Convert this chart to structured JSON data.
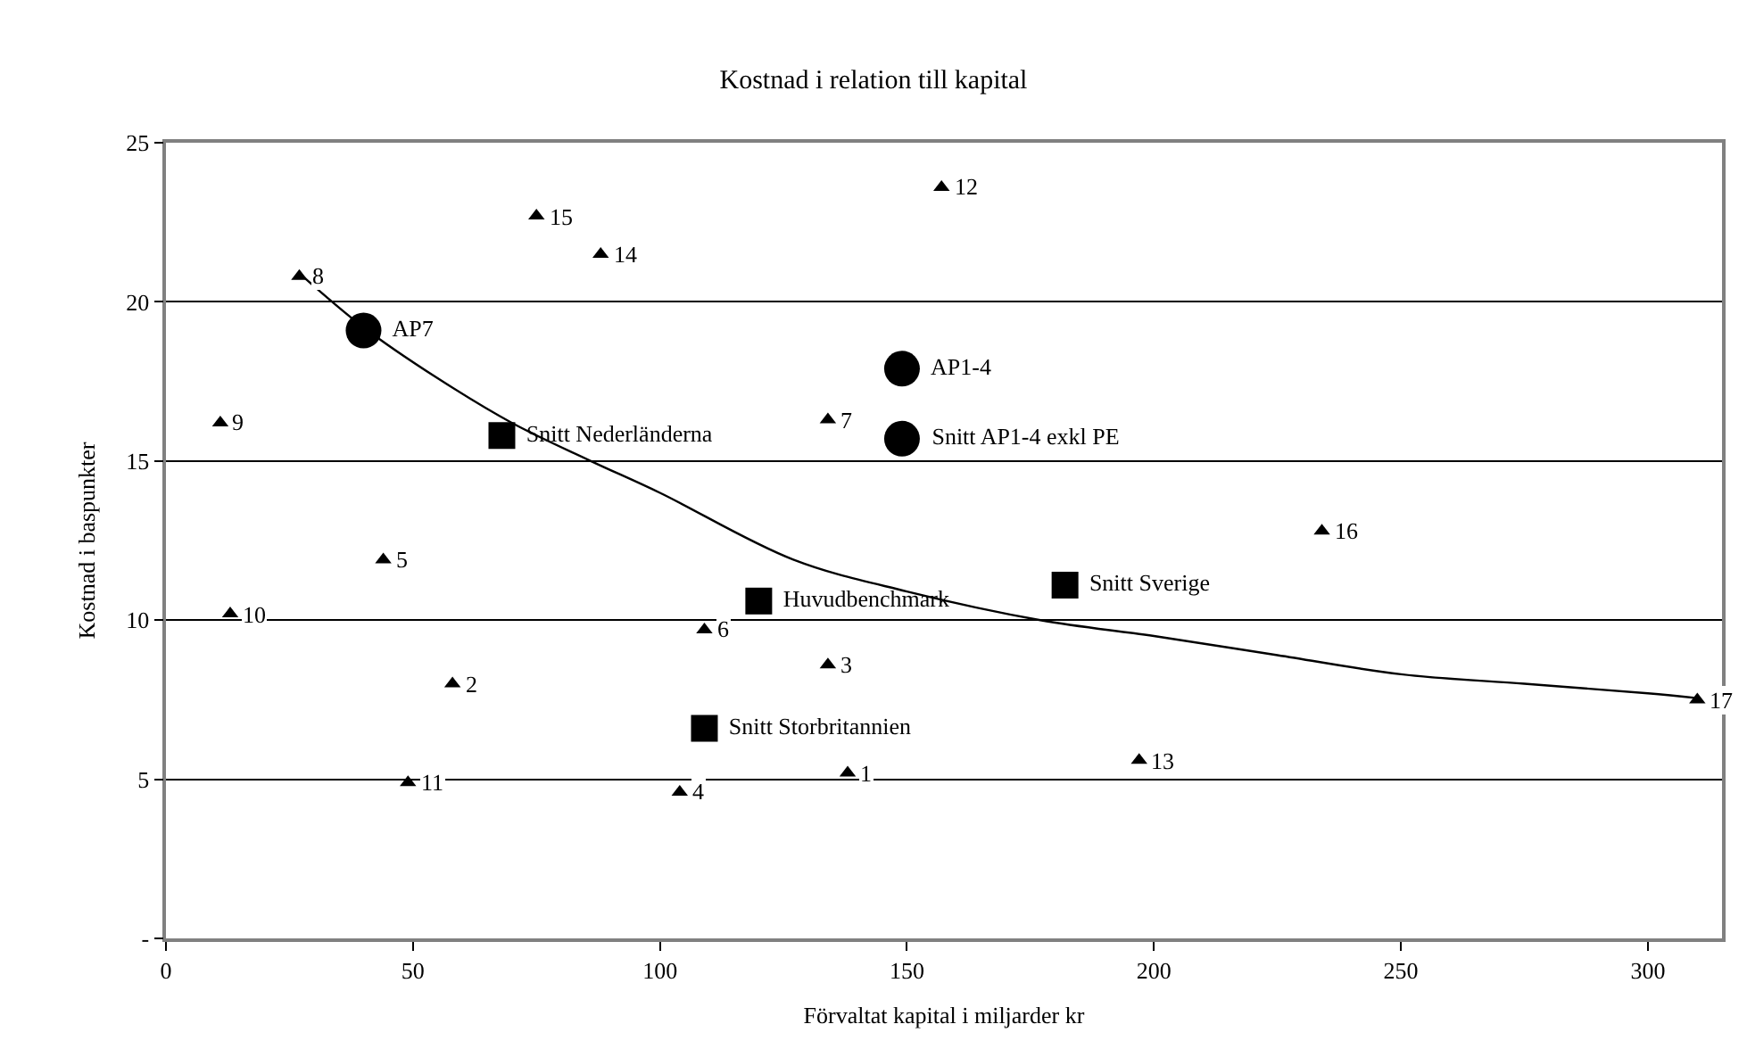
{
  "chart_data": {
    "type": "scatter",
    "title": "Kostnad i relation till kapital",
    "xlabel": "Förvaltat kapital i miljarder kr",
    "ylabel": "Kostnad i baspunkter",
    "xlim": [
      0,
      315
    ],
    "xticks": [
      0,
      50,
      100,
      150,
      200,
      250,
      300
    ],
    "ylim": [
      0,
      25
    ],
    "yticks": [
      {
        "value": 0,
        "label": "-"
      },
      5,
      10,
      15,
      20,
      25
    ],
    "grid": "y",
    "series": [
      {
        "marker": "triangle",
        "color": "#000000",
        "x": [
          138,
          58,
          134,
          104,
          44,
          109,
          134,
          27,
          11,
          13,
          49,
          157,
          197,
          88,
          75,
          234,
          310
        ],
        "values": [
          5.2,
          8.0,
          8.6,
          4.6,
          11.9,
          9.7,
          16.3,
          20.8,
          16.2,
          10.2,
          4.9,
          23.6,
          5.6,
          21.5,
          22.7,
          12.8,
          7.5
        ]
      },
      {
        "type": "scatter",
        "marker": "circle",
        "color": "#000000",
        "name": "AP7",
        "x": [
          40
        ],
        "values": [
          19.1
        ]
      },
      {
        "type": "scatter",
        "marker": "circle",
        "color": "#000000",
        "name": "AP1-4",
        "x": [
          149
        ],
        "values": [
          17.9
        ]
      },
      {
        "type": "scatter",
        "marker": "circle",
        "color": "#000000",
        "name": "Snitt AP1-4 exkl PE",
        "x": [
          149
        ],
        "values": [
          15.7
        ]
      },
      {
        "type": "scatter",
        "marker": "square",
        "color": "#000000",
        "name": "Snitt Nederländerna",
        "x": [
          68
        ],
        "values": [
          15.8
        ]
      },
      {
        "type": "scatter",
        "marker": "square",
        "color": "#000000",
        "name": "Huvudbenchmark",
        "x": [
          120
        ],
        "values": [
          10.6
        ]
      },
      {
        "type": "scatter",
        "marker": "square",
        "color": "#000000",
        "name": "Snitt Storbritannien",
        "x": [
          109
        ],
        "values": [
          6.6
        ]
      },
      {
        "type": "scatter",
        "marker": "square",
        "color": "#000000",
        "name": "Snitt Sverige",
        "x": [
          182
        ],
        "values": [
          11.1
        ]
      },
      {
        "type": "line",
        "marker": "none",
        "line_style": "solid",
        "color": "#000000",
        "x": [
          27,
          40,
          55,
          70,
          86,
          100,
          127,
          150,
          177,
          200,
          225,
          250,
          275,
          300,
          310
        ],
        "values": [
          20.9,
          19.2,
          17.6,
          16.2,
          15.0,
          14.0,
          11.9,
          10.9,
          10.0,
          9.5,
          8.9,
          8.3,
          8.0,
          7.7,
          7.55
        ]
      }
    ],
    "annotations": [
      {
        "text": "1",
        "x": 138,
        "y": 5.2
      },
      {
        "text": "2",
        "x": 58,
        "y": 8.0
      },
      {
        "text": "3",
        "x": 134,
        "y": 8.6
      },
      {
        "text": "4",
        "x": 104,
        "y": 4.6
      },
      {
        "text": "5",
        "x": 44,
        "y": 11.9
      },
      {
        "text": "6",
        "x": 109,
        "y": 9.7
      },
      {
        "text": "7",
        "x": 134,
        "y": 16.3
      },
      {
        "text": "8",
        "x": 27,
        "y": 20.8
      },
      {
        "text": "9",
        "x": 11,
        "y": 16.2
      },
      {
        "text": "10",
        "x": 13,
        "y": 10.2
      },
      {
        "text": "11",
        "x": 49,
        "y": 4.9
      },
      {
        "text": "12",
        "x": 157,
        "y": 23.6
      },
      {
        "text": "13",
        "x": 197,
        "y": 5.6
      },
      {
        "text": "14",
        "x": 88,
        "y": 21.5
      },
      {
        "text": "15",
        "x": 75,
        "y": 22.7
      },
      {
        "text": "16",
        "x": 234,
        "y": 12.8
      },
      {
        "text": "17",
        "x": 310,
        "y": 7.5
      }
    ]
  }
}
